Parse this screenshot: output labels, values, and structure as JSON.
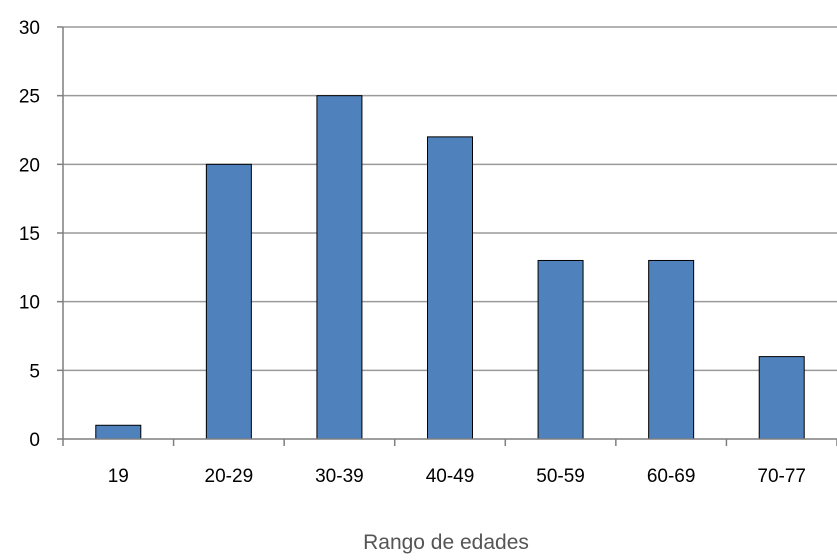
{
  "chart_data": {
    "type": "bar",
    "title": "",
    "xlabel": "Rango de edades",
    "ylabel": "",
    "categories": [
      "19",
      "20-29",
      "30-39",
      "40-49",
      "50-59",
      "60-69",
      "70-77"
    ],
    "values": [
      1,
      20,
      25,
      22,
      13,
      13,
      6
    ],
    "ylim": [
      0,
      30
    ],
    "yticks": [
      0,
      5,
      10,
      15,
      20,
      25,
      30
    ],
    "grid": true,
    "legend": "none",
    "colors": {
      "bar_fill": "#4F81BD",
      "bar_stroke": "#000000",
      "grid": "#9a9a9a",
      "axis": "#7f7f7f"
    }
  }
}
